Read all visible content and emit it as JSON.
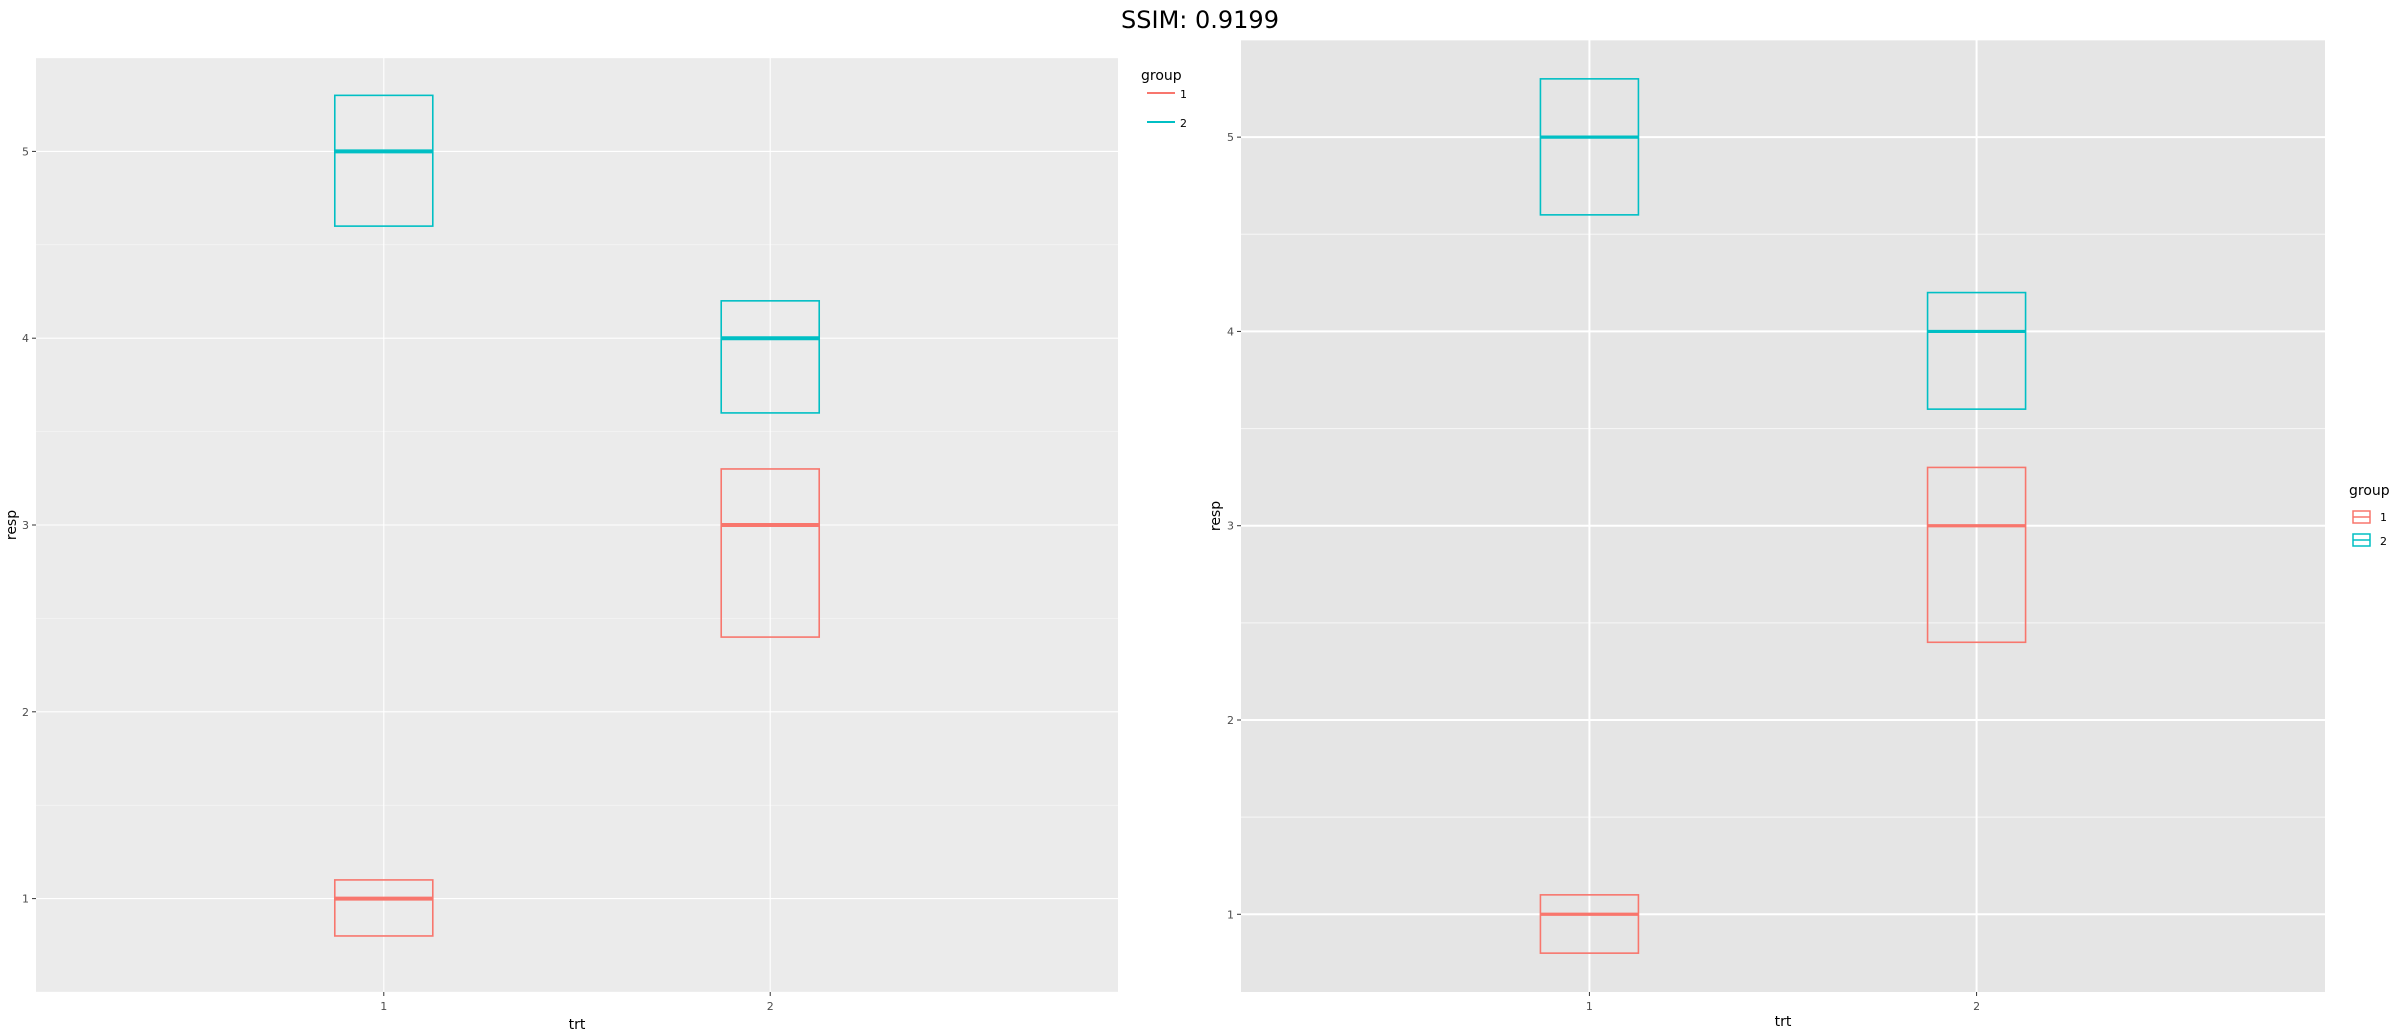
{
  "figure": {
    "title": "SSIM: 0.9199"
  },
  "chart_data": [
    {
      "type": "box",
      "xlabel": "trt",
      "ylabel": "resp",
      "categories": [
        "1",
        "2"
      ],
      "yticks": [
        "1",
        "2",
        "3",
        "4",
        "5"
      ],
      "ylim": [
        0.5,
        5.5
      ],
      "grid": true,
      "legend": {
        "title": "group",
        "placement": "top-right",
        "entries": [
          "1",
          "2"
        ]
      },
      "series": [
        {
          "name": "1",
          "color": "#F8766D",
          "boxes": [
            {
              "category": "1",
              "lower": 0.8,
              "middle": 1.0,
              "upper": 1.1
            },
            {
              "category": "2",
              "lower": 2.4,
              "middle": 3.0,
              "upper": 3.3
            }
          ]
        },
        {
          "name": "2",
          "color": "#00BFC4",
          "boxes": [
            {
              "category": "1",
              "lower": 4.6,
              "middle": 5.0,
              "upper": 5.3
            },
            {
              "category": "2",
              "lower": 3.6,
              "middle": 4.0,
              "upper": 4.2
            }
          ]
        }
      ]
    },
    {
      "type": "box",
      "xlabel": "trt",
      "ylabel": "resp",
      "categories": [
        "1",
        "2"
      ],
      "yticks": [
        "1",
        "2",
        "3",
        "4",
        "5"
      ],
      "ylim": [
        0.6,
        5.5
      ],
      "grid": true,
      "legend": {
        "title": "group",
        "placement": "right",
        "entries": [
          "1",
          "2"
        ]
      },
      "series": [
        {
          "name": "1",
          "color": "#F8766D",
          "boxes": [
            {
              "category": "1",
              "lower": 0.8,
              "middle": 1.0,
              "upper": 1.1
            },
            {
              "category": "2",
              "lower": 2.4,
              "middle": 3.0,
              "upper": 3.3
            }
          ]
        },
        {
          "name": "2",
          "color": "#00BFC4",
          "boxes": [
            {
              "category": "1",
              "lower": 4.6,
              "middle": 5.0,
              "upper": 5.3
            },
            {
              "category": "2",
              "lower": 3.6,
              "middle": 4.0,
              "upper": 4.2
            }
          ]
        }
      ]
    }
  ]
}
